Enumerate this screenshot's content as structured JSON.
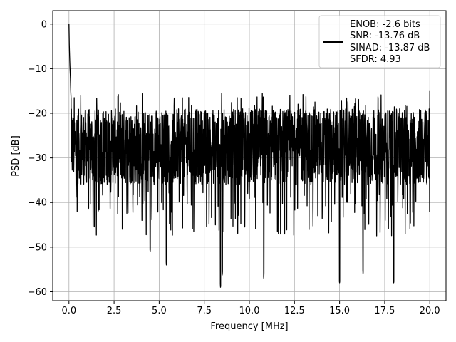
{
  "chart_data": {
    "type": "line",
    "title": "",
    "xlabel": "Frequency [MHz]",
    "ylabel": "PSD [dB]",
    "xlim": [
      -0.9,
      20.9
    ],
    "ylim": [
      -62,
      3
    ],
    "xticks": [
      0.0,
      2.5,
      5.0,
      7.5,
      10.0,
      12.5,
      15.0,
      17.5,
      20.0
    ],
    "xtick_labels": [
      "0.0",
      "2.5",
      "5.0",
      "7.5",
      "10.0",
      "12.5",
      "15.0",
      "17.5",
      "20.0"
    ],
    "yticks": [
      0,
      -10,
      -20,
      -30,
      -40,
      -50,
      -60
    ],
    "ytick_labels": [
      "0",
      "−10",
      "−20",
      "−30",
      "−40",
      "−50",
      "−60"
    ],
    "grid": true,
    "legend_position": "top-right",
    "series": [
      {
        "name": "",
        "color": "#000000",
        "note": "dense noise-like PSD trace, ~2000 points; envelope values below",
        "x": [
          0.0,
          0.02,
          0.05,
          0.08,
          0.1,
          0.15,
          0.2,
          0.25,
          0.3,
          0.4,
          0.5,
          0.6,
          0.8,
          1.0,
          1.5,
          2.0,
          2.5,
          3.0,
          4.0,
          4.5,
          5.0,
          5.4,
          6.0,
          6.8,
          7.5,
          8.0,
          8.4,
          8.5,
          9.0,
          10.0,
          10.8,
          11.0,
          12.0,
          12.5,
          13.5,
          14.0,
          15.0,
          16.0,
          16.3,
          17.0,
          17.5,
          18.0,
          19.0,
          19.9,
          20.0
        ],
        "y": [
          0.0,
          -5.0,
          -9.0,
          -12.0,
          -15.0,
          -20.0,
          -24.0,
          -28.0,
          -34.0,
          -38.0,
          -33.0,
          -27.0,
          -25.0,
          -30.0,
          -29.0,
          -28.0,
          -27.0,
          -26.0,
          -28.0,
          -51.0,
          -27.0,
          -54.0,
          -28.0,
          -27.0,
          -29.0,
          -27.0,
          -59.0,
          -56.0,
          -28.0,
          -27.0,
          -57.0,
          -29.0,
          -28.0,
          -30.0,
          -27.0,
          -28.0,
          -58.0,
          -29.0,
          -56.0,
          -28.0,
          -30.0,
          -58.0,
          -29.0,
          -37.0,
          -15.0
        ]
      }
    ],
    "legend_entries": [
      "ENOB: -2.6 bits",
      "SNR: -13.76 dB",
      "SINAD: -13.87 dB",
      "SFDR: 4.93"
    ]
  }
}
